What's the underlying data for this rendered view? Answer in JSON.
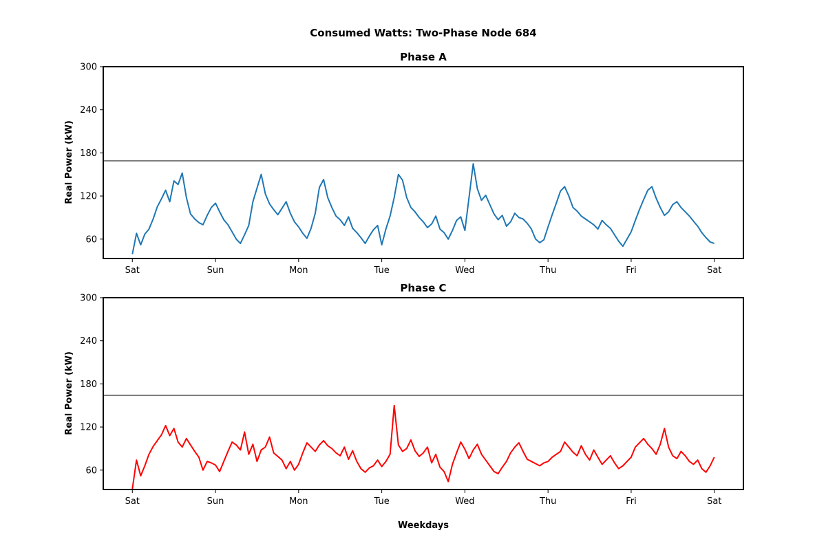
{
  "figure": {
    "suptitle": "Consumed Watts: Two-Phase Node 684",
    "xlabel": "Weekdays"
  },
  "chart_data": [
    {
      "type": "line",
      "title": "Phase A",
      "ylabel": "Real Power (kW)",
      "xlabel": "",
      "ylim": [
        33,
        300
      ],
      "xlim": [
        -0.35,
        7.35
      ],
      "yticks": [
        60,
        120,
        180,
        240,
        300
      ],
      "xticks": [
        0,
        1,
        2,
        3,
        4,
        5,
        6,
        7
      ],
      "xtick_labels": [
        "Sat",
        "Sun",
        "Mon",
        "Tue",
        "Wed",
        "Thu",
        "Fri",
        "Sat"
      ],
      "grid": false,
      "reference_line": {
        "y": 169,
        "color": "#666666"
      },
      "series": [
        {
          "color": "#1f77b4",
          "x": [
            0,
            0.05,
            0.1,
            0.15,
            0.2,
            0.25,
            0.3,
            0.35,
            0.4,
            0.45,
            0.5,
            0.55,
            0.6,
            0.65,
            0.7,
            0.75,
            0.8,
            0.85,
            0.9,
            0.95,
            1,
            1.05,
            1.1,
            1.15,
            1.2,
            1.25,
            1.3,
            1.35,
            1.4,
            1.45,
            1.5,
            1.55,
            1.6,
            1.65,
            1.7,
            1.75,
            1.8,
            1.85,
            1.9,
            1.95,
            2,
            2.05,
            2.1,
            2.15,
            2.2,
            2.25,
            2.3,
            2.35,
            2.4,
            2.45,
            2.5,
            2.55,
            2.6,
            2.65,
            2.7,
            2.75,
            2.8,
            2.85,
            2.9,
            2.95,
            3,
            3.05,
            3.1,
            3.15,
            3.2,
            3.25,
            3.3,
            3.35,
            3.4,
            3.45,
            3.5,
            3.55,
            3.6,
            3.65,
            3.7,
            3.75,
            3.8,
            3.85,
            3.9,
            3.95,
            4,
            4.05,
            4.1,
            4.15,
            4.2,
            4.25,
            4.3,
            4.35,
            4.4,
            4.45,
            4.5,
            4.55,
            4.6,
            4.65,
            4.7,
            4.75,
            4.8,
            4.85,
            4.9,
            4.95,
            5,
            5.05,
            5.1,
            5.15,
            5.2,
            5.25,
            5.3,
            5.35,
            5.4,
            5.45,
            5.5,
            5.55,
            5.6,
            5.65,
            5.7,
            5.75,
            5.8,
            5.85,
            5.9,
            5.95,
            6,
            6.05,
            6.1,
            6.15,
            6.2,
            6.25,
            6.3,
            6.35,
            6.4,
            6.45,
            6.5,
            6.55,
            6.6,
            6.65,
            6.7,
            6.75,
            6.8,
            6.85,
            6.9,
            6.95,
            7
          ],
          "y": [
            39,
            68,
            52,
            67,
            74,
            88,
            105,
            116,
            128,
            112,
            141,
            136,
            152,
            118,
            95,
            88,
            83,
            80,
            93,
            104,
            110,
            98,
            87,
            80,
            70,
            60,
            54,
            66,
            79,
            112,
            131,
            150,
            123,
            109,
            101,
            94,
            103,
            112,
            96,
            84,
            77,
            68,
            61,
            75,
            96,
            132,
            143,
            118,
            104,
            92,
            87,
            79,
            91,
            75,
            69,
            62,
            54,
            64,
            73,
            79,
            52,
            74,
            92,
            118,
            150,
            142,
            118,
            104,
            98,
            90,
            84,
            76,
            81,
            92,
            74,
            69,
            60,
            72,
            86,
            91,
            72,
            118,
            165,
            130,
            114,
            121,
            108,
            95,
            87,
            93,
            78,
            84,
            96,
            90,
            88,
            82,
            74,
            60,
            55,
            59,
            77,
            94,
            110,
            127,
            133,
            120,
            104,
            99,
            92,
            88,
            84,
            80,
            74,
            86,
            80,
            75,
            66,
            57,
            50,
            60,
            70,
            86,
            101,
            115,
            128,
            133,
            117,
            104,
            93,
            98,
            108,
            112,
            104,
            98,
            92,
            85,
            78,
            69,
            62,
            56,
            54
          ]
        }
      ]
    },
    {
      "type": "line",
      "title": "Phase C",
      "ylabel": "Real Power (kW)",
      "xlabel": "Weekdays",
      "ylim": [
        33,
        300
      ],
      "xlim": [
        -0.35,
        7.35
      ],
      "yticks": [
        60,
        120,
        180,
        240,
        300
      ],
      "xticks": [
        0,
        1,
        2,
        3,
        4,
        5,
        6,
        7
      ],
      "xtick_labels": [
        "Sat",
        "Sun",
        "Mon",
        "Tue",
        "Wed",
        "Thu",
        "Fri",
        "Sat"
      ],
      "grid": false,
      "reference_line": {
        "y": 164,
        "color": "#666666"
      },
      "series": [
        {
          "color": "#ff0000",
          "x": [
            0,
            0.05,
            0.1,
            0.15,
            0.2,
            0.25,
            0.3,
            0.35,
            0.4,
            0.45,
            0.5,
            0.55,
            0.6,
            0.65,
            0.7,
            0.75,
            0.8,
            0.85,
            0.9,
            0.95,
            1,
            1.05,
            1.1,
            1.15,
            1.2,
            1.25,
            1.3,
            1.35,
            1.4,
            1.45,
            1.5,
            1.55,
            1.6,
            1.65,
            1.7,
            1.75,
            1.8,
            1.85,
            1.9,
            1.95,
            2,
            2.05,
            2.1,
            2.15,
            2.2,
            2.25,
            2.3,
            2.35,
            2.4,
            2.45,
            2.5,
            2.55,
            2.6,
            2.65,
            2.7,
            2.75,
            2.8,
            2.85,
            2.9,
            2.95,
            3,
            3.05,
            3.1,
            3.15,
            3.2,
            3.25,
            3.3,
            3.35,
            3.4,
            3.45,
            3.5,
            3.55,
            3.6,
            3.65,
            3.7,
            3.75,
            3.8,
            3.85,
            3.9,
            3.95,
            4,
            4.05,
            4.1,
            4.15,
            4.2,
            4.25,
            4.3,
            4.35,
            4.4,
            4.45,
            4.5,
            4.55,
            4.6,
            4.65,
            4.7,
            4.75,
            4.8,
            4.85,
            4.9,
            4.95,
            5,
            5.05,
            5.1,
            5.15,
            5.2,
            5.25,
            5.3,
            5.35,
            5.4,
            5.45,
            5.5,
            5.55,
            5.6,
            5.65,
            5.7,
            5.75,
            5.8,
            5.85,
            5.9,
            5.95,
            6,
            6.05,
            6.1,
            6.15,
            6.2,
            6.25,
            6.3,
            6.35,
            6.4,
            6.45,
            6.5,
            6.55,
            6.6,
            6.65,
            6.7,
            6.75,
            6.8,
            6.85,
            6.9,
            6.95,
            7
          ],
          "y": [
            34,
            74,
            52,
            66,
            82,
            93,
            101,
            109,
            122,
            108,
            118,
            99,
            92,
            104,
            95,
            86,
            78,
            60,
            72,
            70,
            67,
            58,
            72,
            86,
            99,
            95,
            88,
            113,
            82,
            96,
            72,
            88,
            92,
            106,
            84,
            79,
            74,
            62,
            72,
            60,
            68,
            84,
            98,
            92,
            86,
            95,
            101,
            94,
            90,
            84,
            80,
            92,
            75,
            87,
            72,
            62,
            57,
            63,
            66,
            74,
            65,
            72,
            82,
            150,
            95,
            86,
            90,
            102,
            87,
            79,
            84,
            92,
            70,
            82,
            64,
            58,
            44,
            68,
            84,
            99,
            89,
            76,
            88,
            96,
            82,
            74,
            66,
            58,
            55,
            64,
            72,
            84,
            92,
            98,
            86,
            75,
            72,
            69,
            66,
            70,
            72,
            78,
            82,
            86,
            99,
            92,
            85,
            80,
            94,
            82,
            74,
            88,
            78,
            68,
            74,
            80,
            70,
            62,
            66,
            72,
            78,
            92,
            98,
            104,
            96,
            90,
            82,
            96,
            118,
            92,
            80,
            76,
            86,
            80,
            72,
            68,
            74,
            62,
            57,
            66,
            78
          ]
        }
      ]
    }
  ]
}
